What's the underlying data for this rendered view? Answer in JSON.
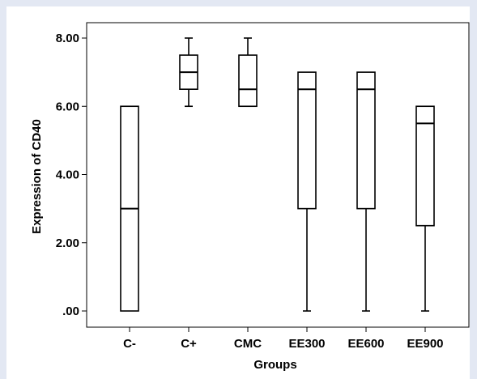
{
  "chart_data": {
    "type": "box",
    "xlabel": "Groups",
    "ylabel": "Expression of CD40",
    "ylim": [
      0,
      8
    ],
    "yticks": [
      0,
      2,
      4,
      6,
      8
    ],
    "ytick_labels": [
      ".00",
      "2.00",
      "4.00",
      "6.00",
      "8.00"
    ],
    "categories": [
      "C-",
      "C+",
      "CMC",
      "EE300",
      "EE600",
      "EE900"
    ],
    "boxes": [
      {
        "min": 0,
        "q1": 0,
        "median": 3,
        "q3": 6,
        "max": 6
      },
      {
        "min": 6,
        "q1": 6.5,
        "median": 7,
        "q3": 7.5,
        "max": 8
      },
      {
        "min": 6,
        "q1": 6,
        "median": 6.5,
        "q3": 7.5,
        "max": 8
      },
      {
        "min": 0,
        "q1": 3,
        "median": 6.5,
        "q3": 7,
        "max": 7
      },
      {
        "min": 0,
        "q1": 3,
        "median": 6.5,
        "q3": 7,
        "max": 7
      },
      {
        "min": 0,
        "q1": 2.5,
        "median": 5.5,
        "q3": 6,
        "max": 6
      }
    ],
    "grid": false,
    "colors": {
      "box_fill": "#ffffff",
      "stroke": "#000000",
      "background": "#e3e8f3"
    }
  }
}
